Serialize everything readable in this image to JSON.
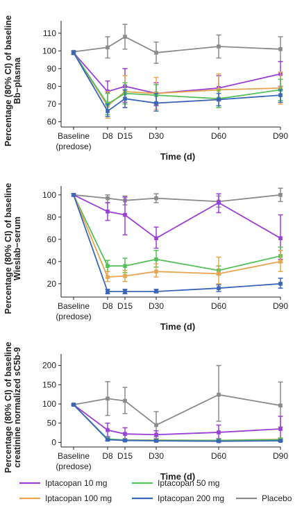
{
  "colors": {
    "iptacopan_10": "#9b3fd6",
    "iptacopan_50": "#55c05a",
    "iptacopan_100": "#e8a451",
    "iptacopan_200": "#3b66b8",
    "placebo": "#8a8a8a"
  },
  "legend": [
    {
      "name": "Iptacopan 10 mg",
      "color": "#9b3fd6"
    },
    {
      "name": "Iptacopan 50 mg",
      "color": "#55c05a"
    },
    {
      "name": "Iptacopan 100 mg",
      "color": "#e8a451"
    },
    {
      "name": "Iptacopan 200 mg",
      "color": "#3b66b8"
    },
    {
      "name": "Placebo",
      "color": "#8a8a8a"
    }
  ],
  "chart_data": [
    {
      "type": "line",
      "ylabel_lines": [
        "Percentage (80% CI) of baseline",
        "Bb−plasma"
      ],
      "xlabel": "Time (d)",
      "x": [
        0,
        8,
        15,
        30,
        60,
        90
      ],
      "x_tick_labels": [
        "Baseline",
        "D8",
        "D15",
        "D30",
        "D60",
        "D90"
      ],
      "x_tick_sublabels": [
        "(predose)",
        "",
        "",
        "",
        "",
        ""
      ],
      "ylim": [
        57,
        117
      ],
      "yticks": [
        60,
        70,
        80,
        90,
        100,
        110
      ],
      "series": [
        {
          "name": "Placebo",
          "values": [
            99.5,
            102,
            108,
            99,
            102.5,
            101
          ],
          "lower": [
            99,
            96,
            101,
            93,
            96,
            94
          ],
          "upper": [
            100,
            108,
            115,
            105,
            109,
            108
          ]
        },
        {
          "name": "Iptacopan 10 mg",
          "values": [
            99,
            77,
            80,
            76,
            79,
            87
          ],
          "lower": [
            98,
            71,
            71,
            69,
            72,
            80
          ],
          "upper": [
            100,
            83,
            90,
            82,
            86,
            94
          ]
        },
        {
          "name": "Iptacopan 100 mg",
          "values": [
            99,
            69,
            77,
            76,
            78,
            79
          ],
          "lower": [
            98,
            62,
            68,
            67,
            68,
            70
          ],
          "upper": [
            100,
            77,
            86,
            85,
            87,
            88
          ]
        },
        {
          "name": "Iptacopan 50 mg",
          "values": [
            99,
            70,
            76,
            75,
            73,
            78
          ],
          "lower": [
            98,
            64,
            70,
            70,
            68,
            72
          ],
          "upper": [
            100,
            76,
            82,
            81,
            78,
            84
          ]
        },
        {
          "name": "Iptacopan 200 mg",
          "values": [
            99,
            66,
            73,
            70.5,
            72.5,
            75
          ],
          "lower": [
            98,
            63,
            68,
            66,
            69,
            71
          ],
          "upper": [
            100,
            70,
            78,
            76,
            76,
            78
          ]
        }
      ]
    },
    {
      "type": "line",
      "ylabel_lines": [
        "Percentage (80% CI) of baseline",
        "Wieslab−serum"
      ],
      "xlabel": "Time (d)",
      "x": [
        0,
        8,
        15,
        30,
        60,
        90
      ],
      "x_tick_labels": [
        "Baseline",
        "D8",
        "D15",
        "D30",
        "D60",
        "D90"
      ],
      "x_tick_sublabels": [
        "(predose)",
        "",
        "",
        "",
        "",
        ""
      ],
      "ylim": [
        8,
        108
      ],
      "yticks": [
        20,
        40,
        60,
        80,
        100
      ],
      "series": [
        {
          "name": "Placebo",
          "values": [
            100,
            97,
            95,
            97,
            94,
            100
          ],
          "lower": [
            99,
            93,
            91,
            93,
            89,
            94
          ],
          "upper": [
            101,
            100,
            99,
            101,
            99,
            106
          ]
        },
        {
          "name": "Iptacopan 10 mg",
          "values": [
            100,
            85,
            82,
            61,
            93,
            61
          ],
          "lower": [
            99,
            77,
            64,
            52,
            84,
            42
          ],
          "upper": [
            101,
            93,
            98,
            71,
            101,
            82
          ]
        },
        {
          "name": "Iptacopan 50 mg",
          "values": [
            100,
            36,
            36,
            42,
            32,
            45
          ],
          "lower": [
            99,
            31,
            30,
            35,
            28,
            39
          ],
          "upper": [
            101,
            41,
            43,
            50,
            36,
            53
          ]
        },
        {
          "name": "Iptacopan 100 mg",
          "values": [
            100,
            26,
            27,
            31,
            29,
            40
          ],
          "lower": [
            99,
            22,
            22,
            26,
            20,
            31
          ],
          "upper": [
            101,
            31,
            32,
            38,
            44,
            50
          ]
        },
        {
          "name": "Iptacopan 200 mg",
          "values": [
            100,
            13,
            13,
            13,
            16,
            20
          ],
          "lower": [
            99,
            11,
            11,
            12,
            13,
            16
          ],
          "upper": [
            101,
            15,
            15,
            15,
            19,
            25
          ]
        }
      ]
    },
    {
      "type": "line",
      "ylabel_lines": [
        "Percentage (80% CI) of baseline",
        "creatinine normalized sC5b-9"
      ],
      "xlabel": "Time (d)",
      "x": [
        0,
        8,
        15,
        30,
        60,
        90
      ],
      "x_tick_labels": [
        "Baseline",
        "D8",
        "D15",
        "D30",
        "D60",
        "D90"
      ],
      "x_tick_sublabels": [
        "(predose)",
        "",
        "",
        "",
        "",
        ""
      ],
      "ylim": [
        -12,
        230
      ],
      "yticks": [
        0,
        50,
        100,
        150,
        200
      ],
      "series": [
        {
          "name": "Placebo",
          "values": [
            98,
            114,
            108,
            45,
            124,
            96
          ],
          "lower": [
            96,
            70,
            75,
            15,
            55,
            40
          ],
          "upper": [
            100,
            158,
            143,
            80,
            200,
            157
          ]
        },
        {
          "name": "Iptacopan 10 mg",
          "values": [
            98,
            32,
            22,
            20,
            26,
            35
          ],
          "lower": [
            96,
            15,
            8,
            10,
            10,
            8
          ],
          "upper": [
            100,
            50,
            38,
            30,
            45,
            68
          ]
        },
        {
          "name": "Iptacopan 100 mg",
          "values": [
            98,
            8,
            6,
            6,
            5,
            8
          ],
          "lower": [
            96,
            4,
            3,
            3,
            2,
            4
          ],
          "upper": [
            100,
            12,
            9,
            9,
            8,
            12
          ]
        },
        {
          "name": "Iptacopan 50 mg",
          "values": [
            98,
            9,
            6,
            5,
            5,
            7
          ],
          "lower": [
            96,
            5,
            3,
            2,
            2,
            3
          ],
          "upper": [
            100,
            13,
            9,
            8,
            8,
            11
          ]
        },
        {
          "name": "Iptacopan 200 mg",
          "values": [
            98,
            7,
            5,
            4,
            3,
            4
          ],
          "lower": [
            96,
            4,
            3,
            2,
            1,
            2
          ],
          "upper": [
            100,
            10,
            7,
            6,
            5,
            6
          ]
        }
      ]
    }
  ]
}
